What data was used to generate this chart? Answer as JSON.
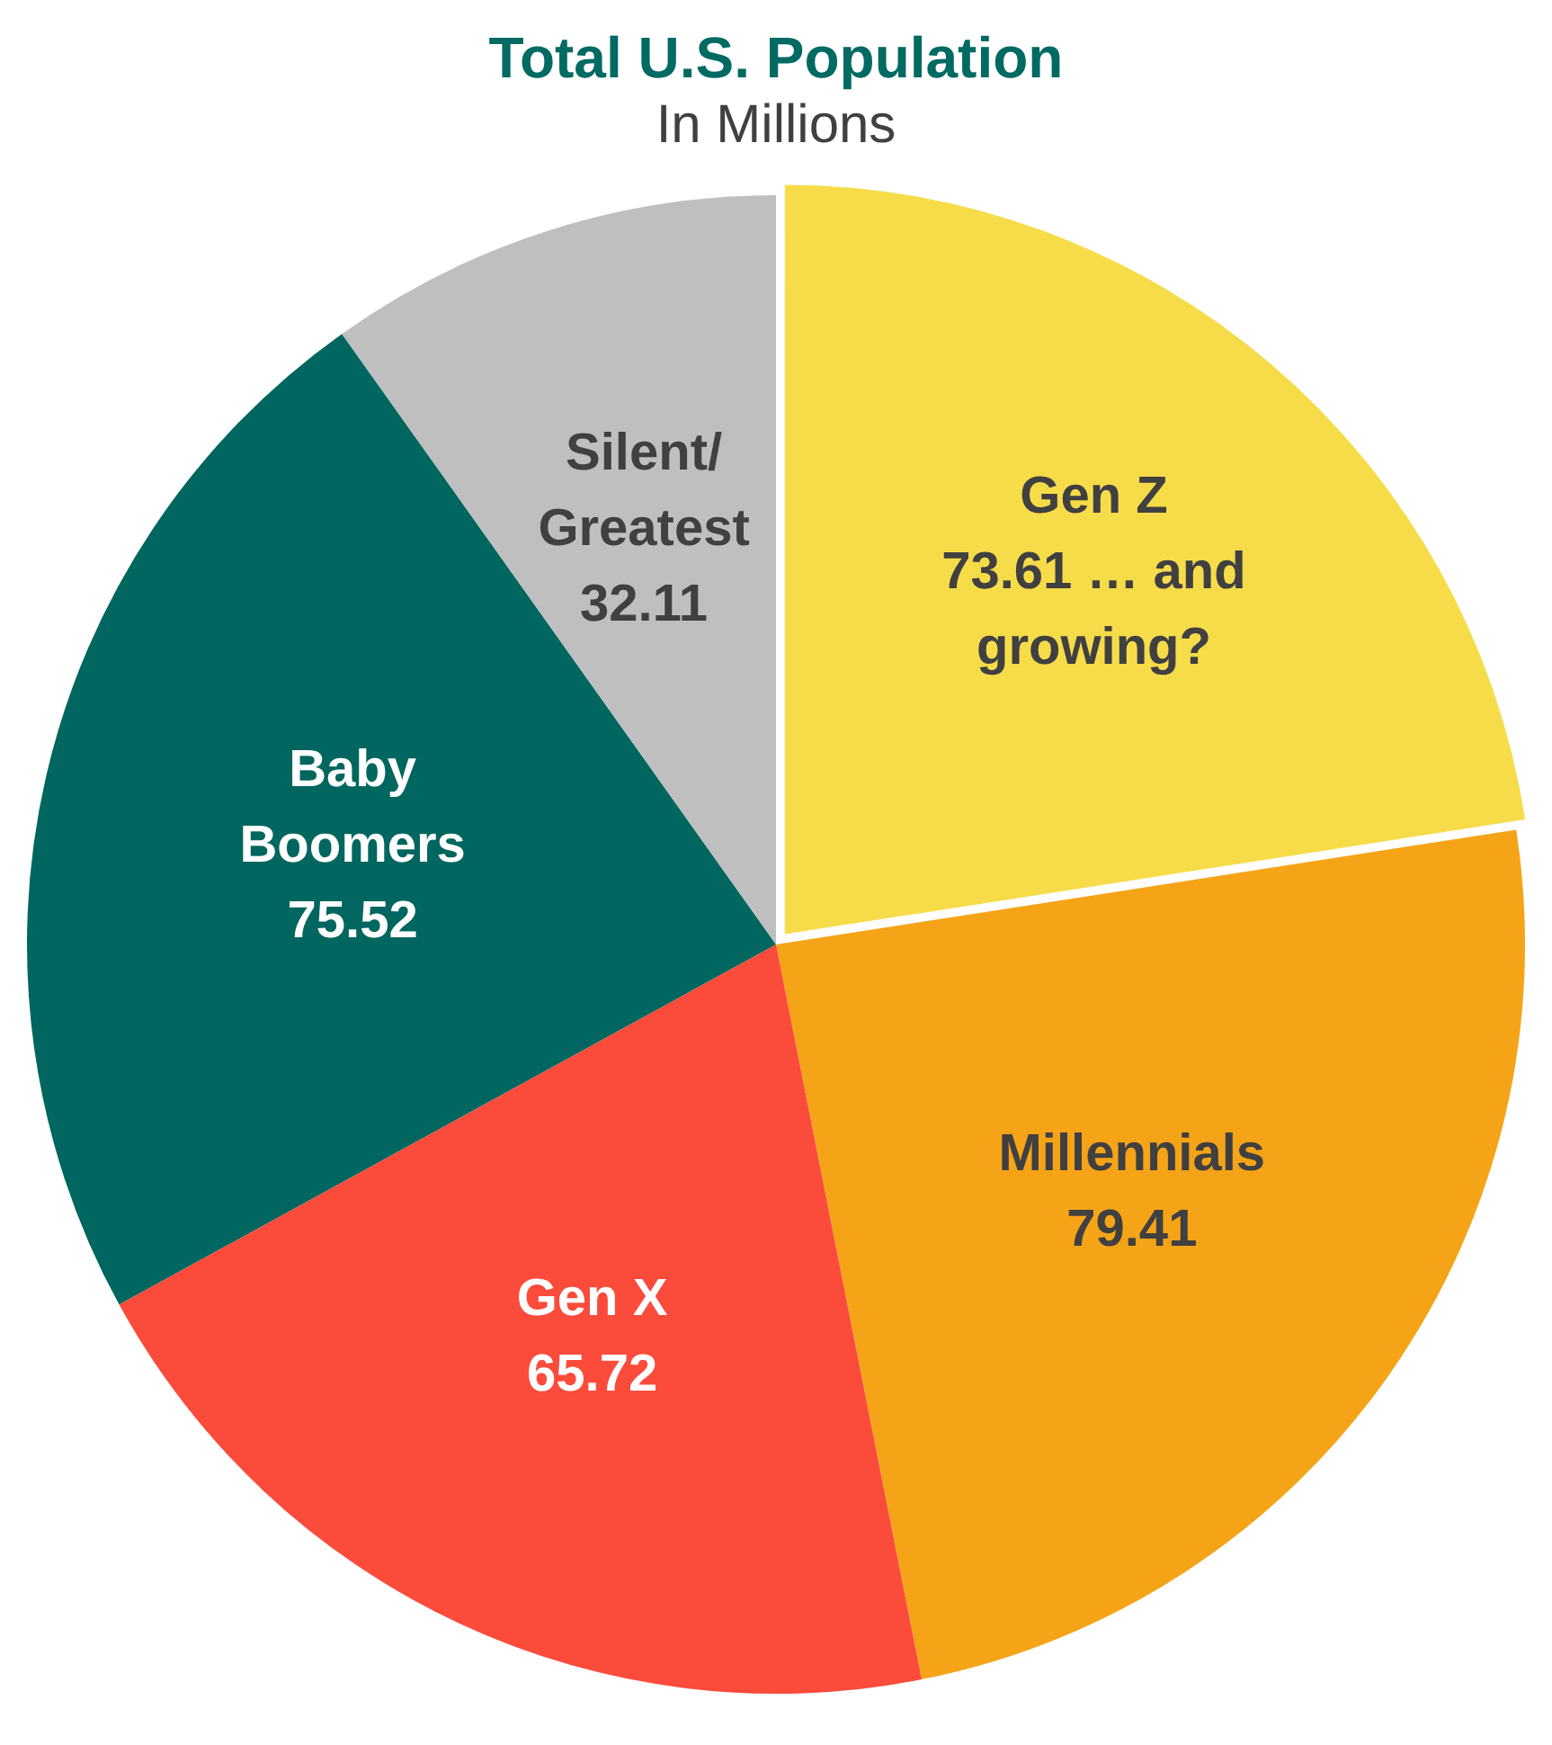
{
  "chart_data": {
    "type": "pie",
    "title": "Total U.S. Population",
    "subtitle": "In Millions",
    "categories": [
      "Gen Z",
      "Millennials",
      "Gen X",
      "Baby Boomers",
      "Silent/Greatest"
    ],
    "values": [
      73.61,
      79.41,
      65.72,
      75.52,
      32.11
    ],
    "value_labels": [
      "73.61 … and growing?",
      "79.41",
      "65.72",
      "75.52",
      "32.11"
    ],
    "colors": [
      "#f7dc4a",
      "#f5a418",
      "#fb4b3b",
      "#00665f",
      "#bfbfbf"
    ],
    "legend": false
  }
}
